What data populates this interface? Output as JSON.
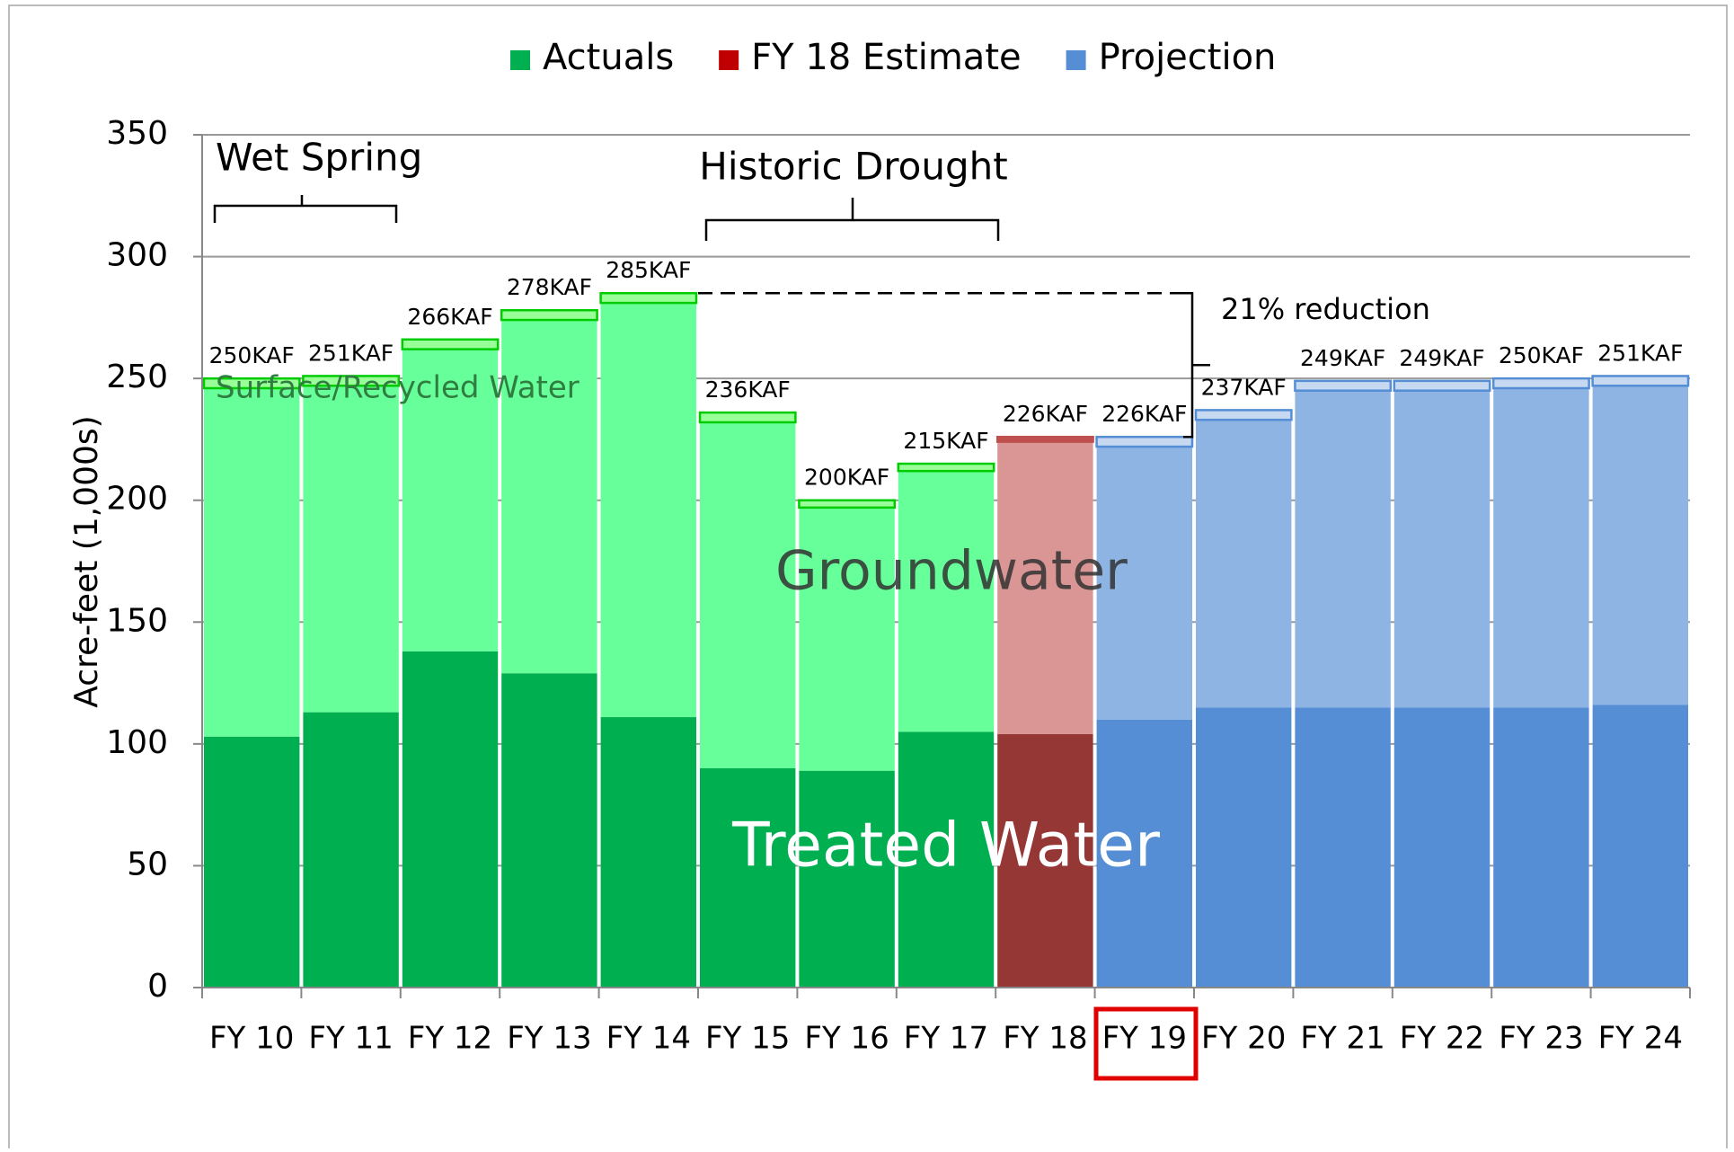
{
  "chart_data": {
    "type": "stacked_bar",
    "y_label": "Acre-feet (1,000s)",
    "categories": [
      "FY 10",
      "FY 11",
      "FY 12",
      "FY 13",
      "FY 14",
      "FY 15",
      "FY 16",
      "FY 17",
      "FY 18",
      "FY 19",
      "FY 20",
      "FY 21",
      "FY 22",
      "FY 23",
      "FY 24"
    ],
    "legend": [
      {
        "name": "Actuals",
        "color": "#00b050"
      },
      {
        "name": "FY 18 Estimate",
        "color": "#c00000"
      },
      {
        "name": "Projection",
        "color": "#558ed5"
      }
    ],
    "series": [
      {
        "name": "Treated Water",
        "values": [
          103,
          113,
          138,
          129,
          111,
          90,
          89,
          105,
          104,
          110,
          115,
          115,
          115,
          115,
          116
        ],
        "colors": [
          "#00b050",
          "#00b050",
          "#00b050",
          "#00b050",
          "#00b050",
          "#00b050",
          "#00b050",
          "#00b050",
          "#953735",
          "#558ed5",
          "#558ed5",
          "#558ed5",
          "#558ed5",
          "#558ed5",
          "#558ed5"
        ]
      },
      {
        "name": "Groundwater",
        "values": [
          143,
          134,
          124,
          145,
          170,
          142,
          108,
          107,
          120,
          112,
          118,
          130,
          130,
          131,
          131
        ],
        "colors": [
          "#66ff99",
          "#66ff99",
          "#66ff99",
          "#66ff99",
          "#66ff99",
          "#66ff99",
          "#66ff99",
          "#66ff99",
          "#d99694",
          "#8eb4e3",
          "#8eb4e3",
          "#8eb4e3",
          "#8eb4e3",
          "#8eb4e3",
          "#8eb4e3"
        ]
      },
      {
        "name": "Surface/Recycled Water",
        "values": [
          4,
          4,
          4,
          4,
          4,
          4,
          3,
          3,
          2,
          4,
          4,
          4,
          4,
          4,
          4
        ],
        "colors": [
          "#99ff99",
          "#99ff99",
          "#99ff99",
          "#99ff99",
          "#99ff99",
          "#99ff99",
          "#99ff99",
          "#99ff99",
          "#c0504d",
          "#c6d9f1",
          "#c6d9f1",
          "#c6d9f1",
          "#c6d9f1",
          "#c6d9f1",
          "#c6d9f1"
        ],
        "edge_colors": [
          "#00cc00",
          "#00cc00",
          "#00cc00",
          "#00cc00",
          "#00cc00",
          "#00cc00",
          "#00cc00",
          "#00cc00",
          "#c0504d",
          "#558ed5",
          "#558ed5",
          "#558ed5",
          "#558ed5",
          "#558ed5",
          "#558ed5"
        ]
      }
    ],
    "total_labels": [
      "250KAF",
      "251KAF",
      "266KAF",
      "278KAF",
      "285KAF",
      "236KAF",
      "200KAF",
      "215KAF",
      "226KAF",
      "226KAF",
      "237KAF",
      "249KAF",
      "249KAF",
      "250KAF",
      "251KAF"
    ],
    "annotations": {
      "wet_spring": "Wet Spring",
      "historic_drought": "Historic Drought",
      "reduction": "21% reduction"
    },
    "ylim": [
      0,
      350
    ],
    "yticks": [
      0,
      50,
      100,
      150,
      200,
      250,
      300,
      350
    ],
    "grid": true
  }
}
